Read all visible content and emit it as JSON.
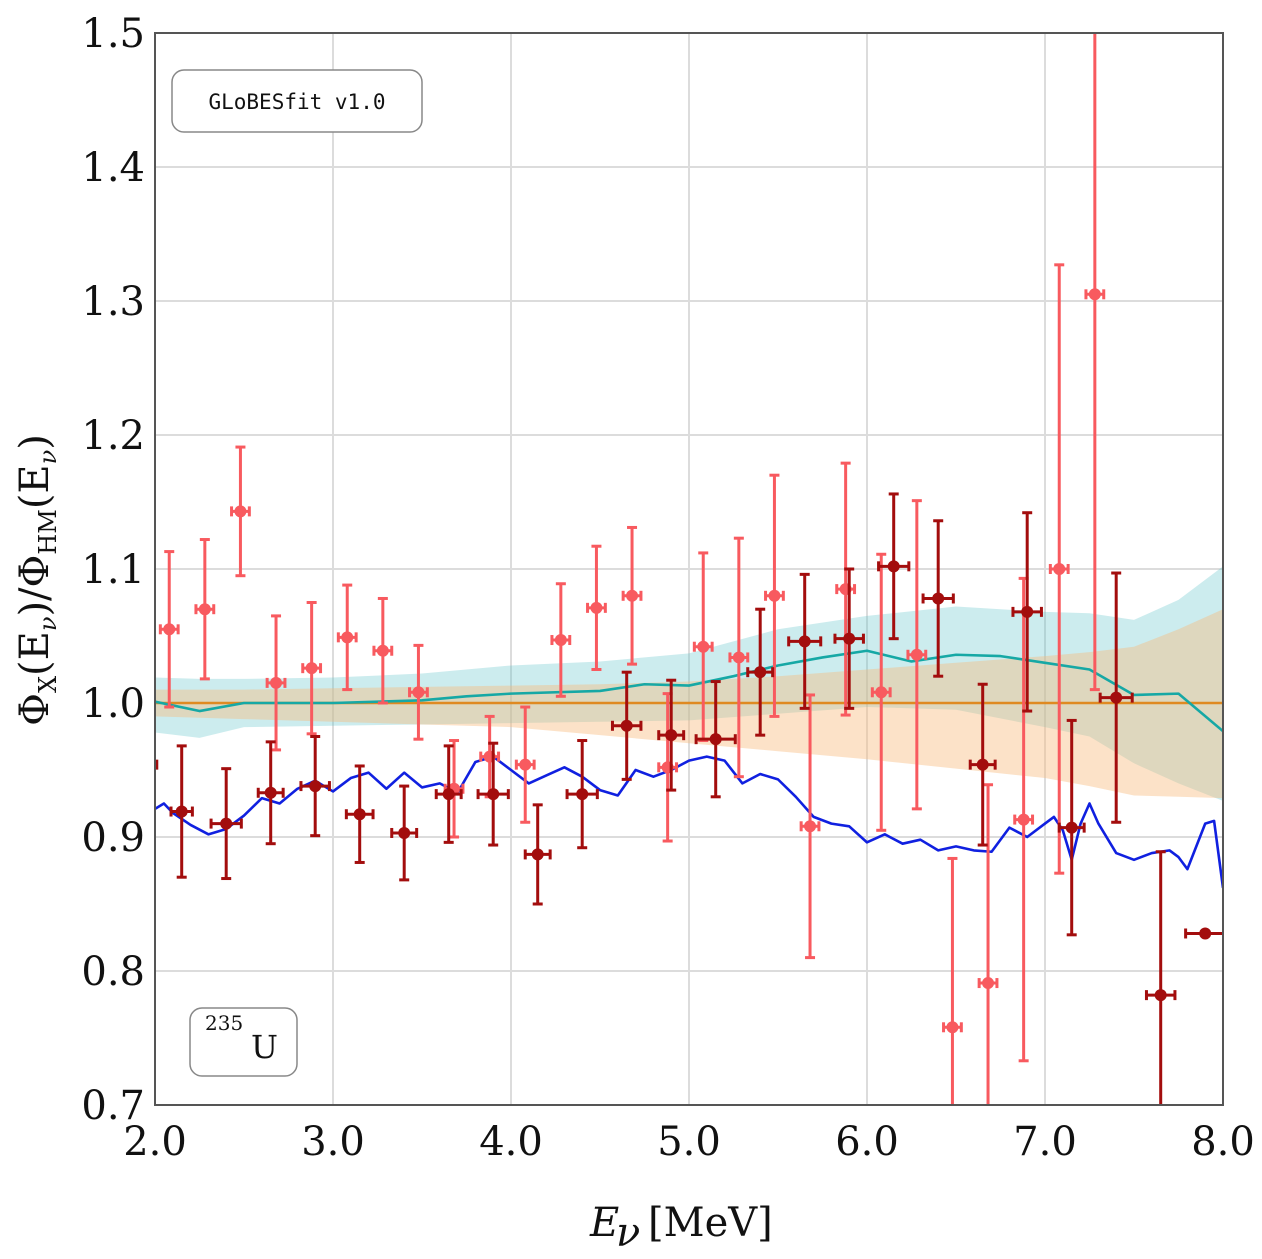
{
  "chart_data": {
    "type": "scatter",
    "xlabel": "E_ν [MeV]",
    "xlabel_main": "E",
    "xlabel_sub": "ν",
    "xlabel_unit": "[MeV]",
    "ylabel": "Φ_X(E_ν)/Φ_HM(E_ν)",
    "ylabel_parts": {
      "phi1": "Φ",
      "sub1": "X",
      "mid1": "(E",
      "nu1": "ν",
      "close1": ")/Φ",
      "sub2": "HM",
      "mid2": "(E",
      "nu2": "ν",
      "close2": ")"
    },
    "xlim": [
      2.0,
      8.0
    ],
    "ylim": [
      0.7,
      1.5
    ],
    "xticks": [
      2.0,
      3.0,
      4.0,
      5.0,
      6.0,
      7.0,
      8.0
    ],
    "xtick_labels": [
      "2.0",
      "3.0",
      "4.0",
      "5.0",
      "6.0",
      "7.0",
      "8.0"
    ],
    "yticks": [
      0.7,
      0.8,
      0.9,
      1.0,
      1.1,
      1.2,
      1.3,
      1.4,
      1.5
    ],
    "ytick_labels": [
      "0.7",
      "0.8",
      "0.9",
      "1.0",
      "1.1",
      "1.2",
      "1.3",
      "1.4",
      "1.5"
    ],
    "grid": true,
    "annotations": {
      "software": "GLoBESfit v1.0",
      "isotope_mass": "235",
      "isotope_symbol": "U"
    },
    "bands": [
      {
        "color": "#5fc5c9",
        "opacity": 0.32,
        "x": [
          2.0,
          2.25,
          2.5,
          3.0,
          3.5,
          4.0,
          4.5,
          5.0,
          5.5,
          6.0,
          6.5,
          7.0,
          7.25,
          7.5,
          7.75,
          8.0
        ],
        "upper": [
          1.019,
          1.018,
          1.018,
          1.019,
          1.022,
          1.028,
          1.031,
          1.037,
          1.055,
          1.065,
          1.072,
          1.068,
          1.067,
          1.062,
          1.077,
          1.102
        ],
        "lower": [
          0.978,
          0.974,
          0.982,
          0.983,
          0.984,
          0.985,
          0.986,
          0.987,
          0.992,
          0.997,
          0.995,
          0.982,
          0.975,
          0.955,
          0.94,
          0.927
        ]
      },
      {
        "color": "#f8b97c",
        "opacity": 0.42,
        "x": [
          2.0,
          2.5,
          3.0,
          3.5,
          4.0,
          4.5,
          5.0,
          5.5,
          6.0,
          6.5,
          7.0,
          7.25,
          7.5,
          7.75,
          8.0
        ],
        "upper": [
          1.01,
          1.01,
          1.011,
          1.012,
          1.013,
          1.014,
          1.016,
          1.02,
          1.025,
          1.03,
          1.035,
          1.038,
          1.042,
          1.055,
          1.07
        ],
        "lower": [
          0.99,
          0.988,
          0.986,
          0.984,
          0.982,
          0.976,
          0.97,
          0.964,
          0.958,
          0.951,
          0.944,
          0.938,
          0.931,
          0.93,
          0.929
        ]
      }
    ],
    "series": [
      {
        "kind": "line",
        "color": "#df8a22",
        "width": 2.6,
        "x": [
          2.0,
          8.0
        ],
        "y": [
          1.0,
          1.0
        ]
      },
      {
        "kind": "line",
        "color": "#16a8a5",
        "width": 2.6,
        "x": [
          2.0,
          2.25,
          2.5,
          3.0,
          3.5,
          3.75,
          4.0,
          4.5,
          4.75,
          5.0,
          5.25,
          5.5,
          5.75,
          6.0,
          6.25,
          6.5,
          6.75,
          7.0,
          7.25,
          7.5,
          7.75,
          8.0
        ],
        "y": [
          1.001,
          0.994,
          1.0,
          1.0,
          1.002,
          1.005,
          1.007,
          1.009,
          1.014,
          1.013,
          1.02,
          1.028,
          1.034,
          1.039,
          1.031,
          1.036,
          1.035,
          1.03,
          1.025,
          1.006,
          1.007,
          0.979
        ]
      },
      {
        "kind": "line",
        "color": "#1020e0",
        "width": 2.6,
        "x": [
          2.0,
          2.05,
          2.1,
          2.2,
          2.3,
          2.4,
          2.5,
          2.6,
          2.7,
          2.8,
          2.9,
          3.0,
          3.1,
          3.2,
          3.3,
          3.4,
          3.5,
          3.6,
          3.7,
          3.8,
          3.9,
          4.0,
          4.1,
          4.2,
          4.3,
          4.4,
          4.5,
          4.6,
          4.7,
          4.8,
          4.9,
          5.0,
          5.1,
          5.2,
          5.3,
          5.4,
          5.5,
          5.6,
          5.7,
          5.8,
          5.9,
          6.0,
          6.1,
          6.2,
          6.3,
          6.4,
          6.5,
          6.6,
          6.7,
          6.8,
          6.9,
          7.0,
          7.05,
          7.1,
          7.15,
          7.2,
          7.25,
          7.3,
          7.4,
          7.5,
          7.6,
          7.7,
          7.75,
          7.8,
          7.85,
          7.9,
          7.95,
          8.0
        ],
        "y": [
          0.921,
          0.925,
          0.918,
          0.909,
          0.902,
          0.906,
          0.916,
          0.929,
          0.925,
          0.936,
          0.942,
          0.934,
          0.944,
          0.948,
          0.936,
          0.948,
          0.937,
          0.94,
          0.933,
          0.956,
          0.96,
          0.95,
          0.94,
          0.946,
          0.952,
          0.945,
          0.935,
          0.931,
          0.95,
          0.945,
          0.95,
          0.957,
          0.96,
          0.957,
          0.94,
          0.947,
          0.943,
          0.93,
          0.915,
          0.91,
          0.908,
          0.896,
          0.902,
          0.895,
          0.898,
          0.89,
          0.893,
          0.89,
          0.889,
          0.907,
          0.9,
          0.91,
          0.915,
          0.905,
          0.883,
          0.91,
          0.925,
          0.91,
          0.888,
          0.883,
          0.888,
          0.89,
          0.885,
          0.876,
          0.893,
          0.91,
          0.912,
          0.862
        ]
      },
      {
        "kind": "errorbar",
        "color": "#f85a5f",
        "points": [
          [
            2.08,
            1.055,
            0.05,
            0.058
          ],
          [
            2.28,
            1.07,
            0.05,
            0.052
          ],
          [
            2.48,
            1.143,
            0.05,
            0.048
          ],
          [
            2.68,
            1.015,
            0.05,
            0.05
          ],
          [
            2.88,
            1.026,
            0.05,
            0.049
          ],
          [
            3.08,
            1.049,
            0.05,
            0.039
          ],
          [
            3.28,
            1.039,
            0.05,
            0.039
          ],
          [
            3.48,
            1.008,
            0.05,
            0.035
          ],
          [
            3.68,
            0.936,
            0.05,
            0.036
          ],
          [
            3.88,
            0.96,
            0.05,
            0.03
          ],
          [
            4.08,
            0.954,
            0.05,
            0.043
          ],
          [
            4.28,
            1.047,
            0.05,
            0.042
          ],
          [
            4.48,
            1.071,
            0.05,
            0.046
          ],
          [
            4.68,
            1.08,
            0.05,
            0.051
          ],
          [
            4.88,
            0.952,
            0.05,
            0.055
          ],
          [
            5.08,
            1.042,
            0.05,
            0.07
          ],
          [
            5.28,
            1.034,
            0.05,
            0.089
          ],
          [
            5.48,
            1.08,
            0.05,
            0.09
          ],
          [
            5.68,
            0.908,
            0.05,
            0.098
          ],
          [
            5.88,
            1.085,
            0.05,
            0.094
          ],
          [
            6.08,
            1.008,
            0.05,
            0.103
          ],
          [
            6.28,
            1.036,
            0.05,
            0.115
          ],
          [
            6.48,
            0.758,
            0.05,
            0.126
          ],
          [
            6.68,
            0.791,
            0.05,
            0.148
          ],
          [
            6.88,
            0.913,
            0.05,
            0.18
          ],
          [
            7.08,
            1.1,
            0.05,
            0.227
          ],
          [
            7.28,
            1.305,
            0.05,
            0.295
          ]
        ]
      },
      {
        "kind": "errorbar",
        "color": "#a30d0d",
        "points": [
          [
            1.95,
            0.954,
            0.06,
            0.0
          ],
          [
            2.15,
            0.919,
            0.06,
            0.049
          ],
          [
            2.4,
            0.91,
            0.085,
            0.041
          ],
          [
            2.65,
            0.933,
            0.07,
            0.038
          ],
          [
            2.9,
            0.938,
            0.08,
            0.037
          ],
          [
            3.15,
            0.917,
            0.075,
            0.036
          ],
          [
            3.4,
            0.903,
            0.07,
            0.035
          ],
          [
            3.65,
            0.932,
            0.07,
            0.036
          ],
          [
            3.9,
            0.932,
            0.085,
            0.038
          ],
          [
            4.15,
            0.887,
            0.07,
            0.037
          ],
          [
            4.4,
            0.932,
            0.085,
            0.04
          ],
          [
            4.65,
            0.983,
            0.08,
            0.04
          ],
          [
            4.9,
            0.976,
            0.07,
            0.041
          ],
          [
            5.15,
            0.973,
            0.11,
            0.043
          ],
          [
            5.4,
            1.023,
            0.07,
            0.047
          ],
          [
            5.65,
            1.046,
            0.09,
            0.05
          ],
          [
            5.9,
            1.048,
            0.08,
            0.052
          ],
          [
            6.15,
            1.102,
            0.085,
            0.054
          ],
          [
            6.4,
            1.078,
            0.085,
            0.058
          ],
          [
            6.65,
            0.954,
            0.07,
            0.06
          ],
          [
            6.9,
            1.068,
            0.08,
            0.074
          ],
          [
            7.15,
            0.907,
            0.07,
            0.08
          ],
          [
            7.4,
            1.004,
            0.09,
            0.093
          ],
          [
            7.65,
            0.782,
            0.08,
            0.107
          ],
          [
            7.9,
            0.828,
            0.11,
            0.0
          ]
        ]
      }
    ]
  },
  "colors": {
    "teal_band": "#5fc5c9",
    "orange_band": "#f8b97c",
    "orange_line": "#df8a22",
    "teal_line": "#16a8a5",
    "blue_line": "#1020e0",
    "light_red_points": "#f85a5f",
    "dark_red_points": "#a30d0d",
    "grid": "#dcdcdc",
    "frame": "#555555"
  }
}
